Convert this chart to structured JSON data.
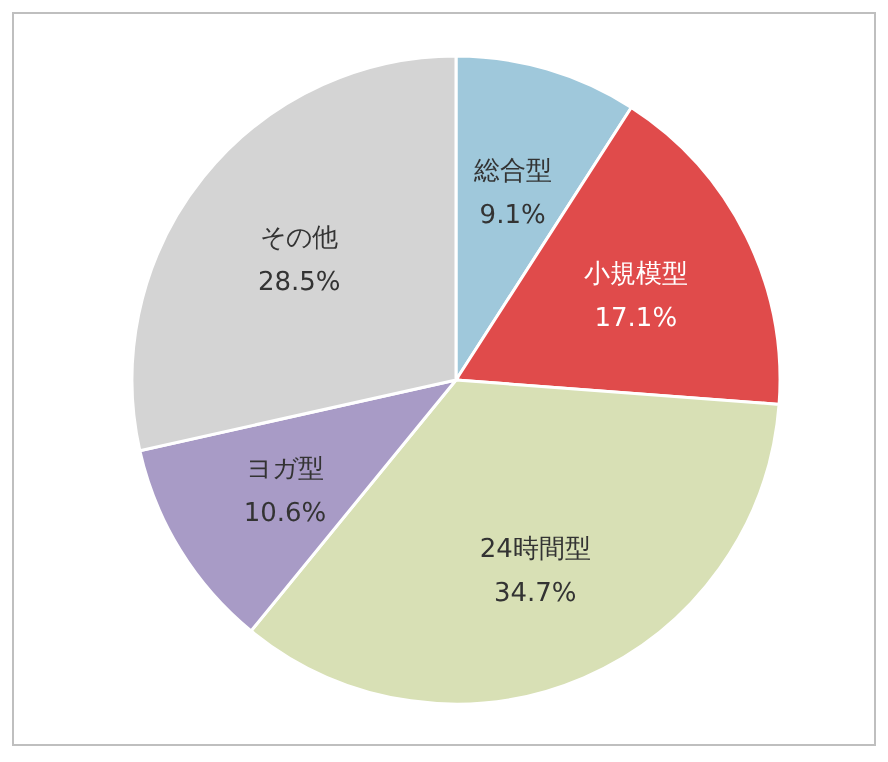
{
  "chart_data": {
    "type": "pie",
    "categories": [
      "総合型",
      "小規模型",
      "24時間型",
      "ヨガ型",
      "その他"
    ],
    "values": [
      9.1,
      17.1,
      34.7,
      10.6,
      28.5
    ],
    "value_labels": [
      "9.1%",
      "17.1%",
      "34.7%",
      "10.6%",
      "28.5%"
    ],
    "colors": [
      "#9fc8db",
      "#e04b4b",
      "#d8e0b5",
      "#a89bc6",
      "#d4d4d4"
    ]
  }
}
